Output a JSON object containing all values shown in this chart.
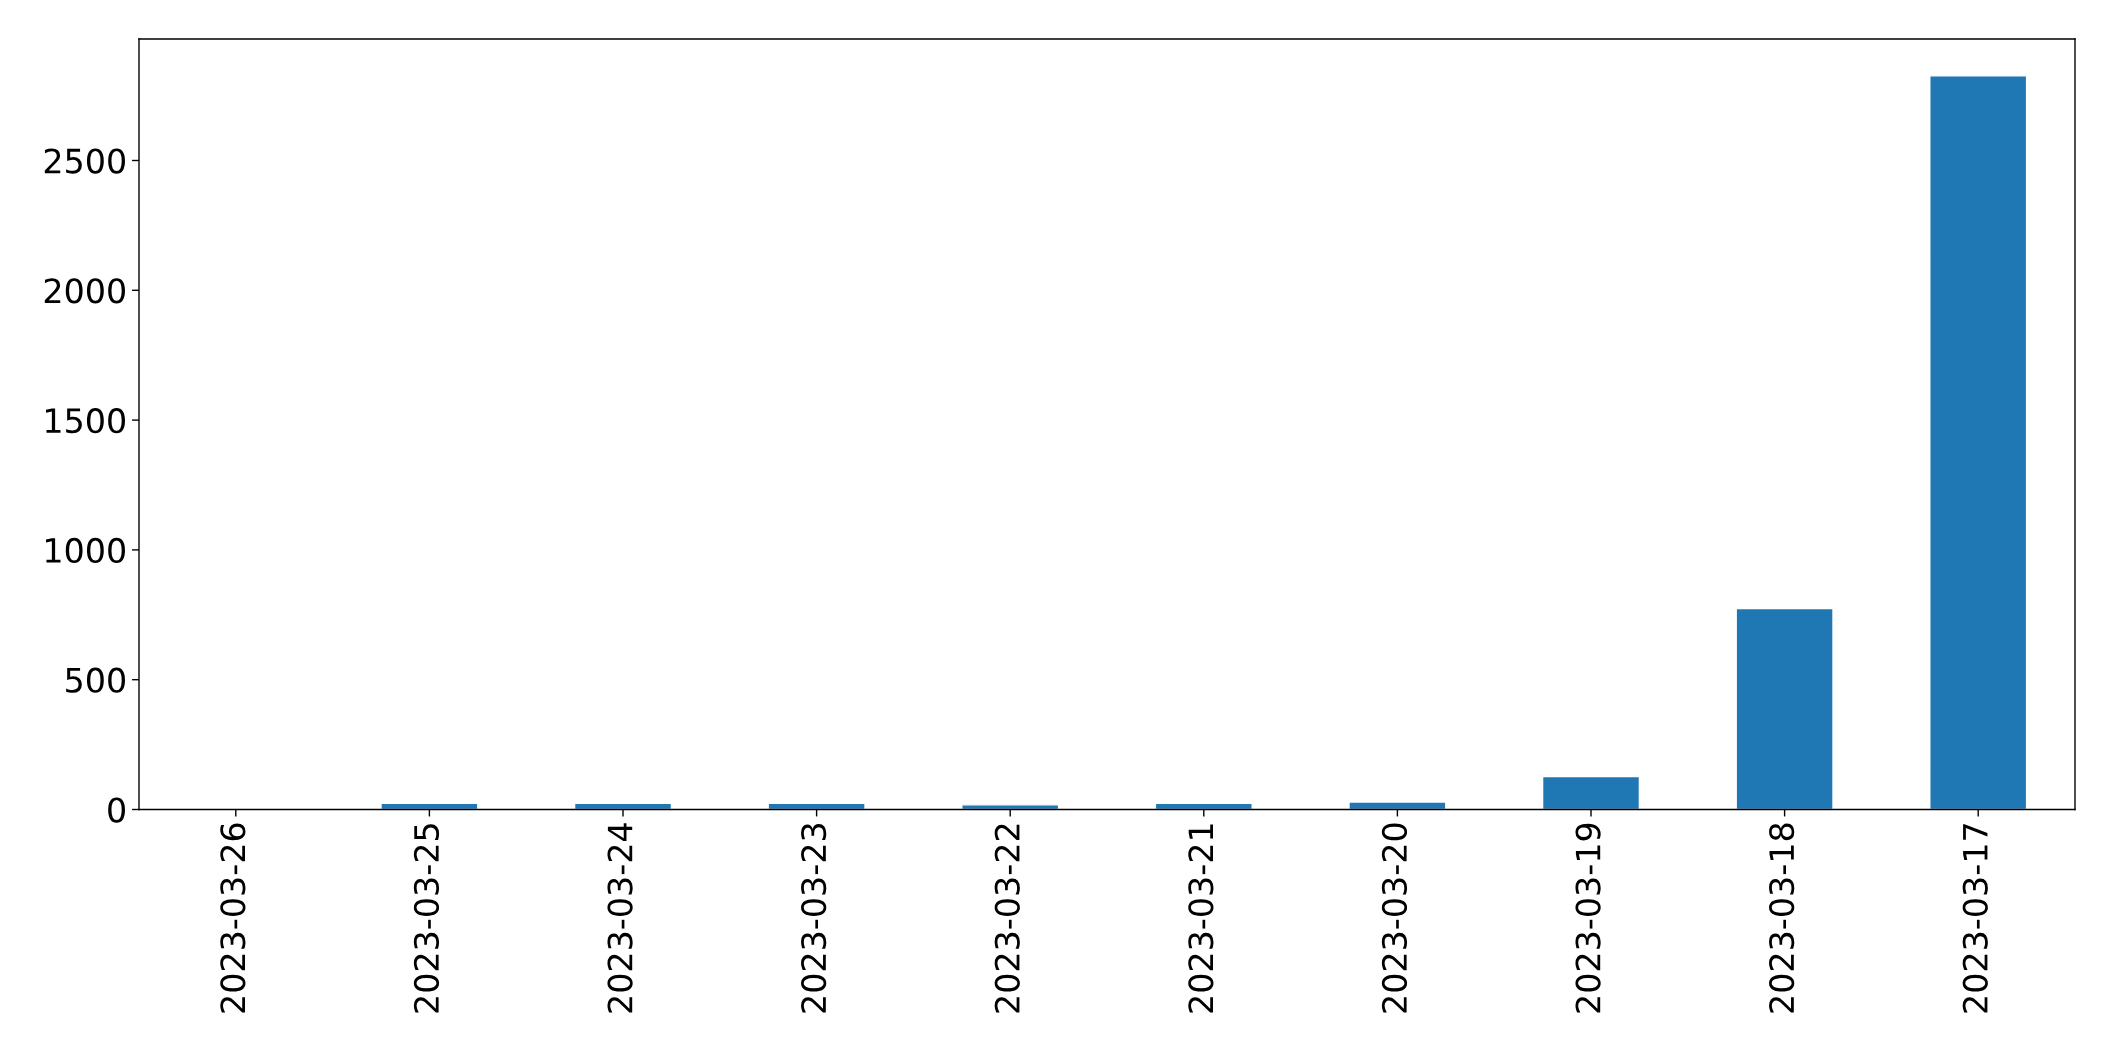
{
  "chart_data": {
    "type": "bar",
    "categories": [
      "2023-03-26",
      "2023-03-25",
      "2023-03-24",
      "2023-03-23",
      "2023-03-22",
      "2023-03-21",
      "2023-03-20",
      "2023-03-19",
      "2023-03-18",
      "2023-03-17"
    ],
    "values": [
      3,
      24,
      24,
      24,
      18,
      24,
      29,
      127,
      774,
      2826
    ],
    "color": "#1f77b4",
    "ylim": [
      0,
      2968
    ],
    "yticks": [
      0,
      500,
      1000,
      1500,
      2000,
      2500
    ],
    "grid": false,
    "legend": false
  }
}
